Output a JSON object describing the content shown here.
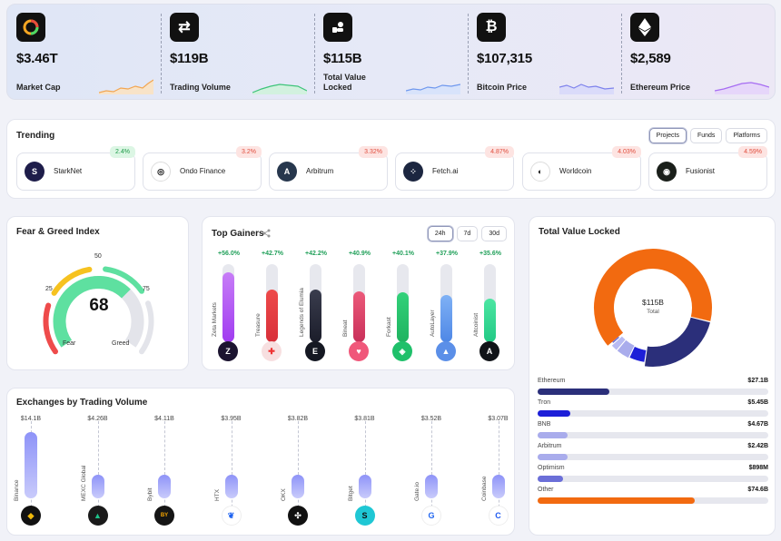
{
  "stats": [
    {
      "value": "$3.46T",
      "label": "Market Cap",
      "icon": "market-cap-icon"
    },
    {
      "value": "$119B",
      "label": "Trading Volume",
      "icon": "swap-arrows-icon"
    },
    {
      "value": "$115B",
      "label": "Total Value Locked",
      "icon": "lock-hand-icon"
    },
    {
      "value": "$107,315",
      "label": "Bitcoin Price",
      "icon": "bitcoin-icon"
    },
    {
      "value": "$2,589",
      "label": "Ethereum Price",
      "icon": "ethereum-icon"
    }
  ],
  "trending": {
    "title": "Trending",
    "tabs": [
      "Projects",
      "Funds",
      "Platforms"
    ],
    "active_tab": "Projects",
    "items": [
      {
        "name": "StarkNet",
        "change": "2.4%",
        "dir": "up",
        "color": "#1e1d4a",
        "glyph": "S"
      },
      {
        "name": "Ondo Finance",
        "change": "3.2%",
        "dir": "down",
        "color": "#ffffff",
        "glyph": "◎"
      },
      {
        "name": "Arbitrum",
        "change": "3.32%",
        "dir": "down",
        "color": "#27374d",
        "glyph": "A"
      },
      {
        "name": "Fetch.ai",
        "change": "4.87%",
        "dir": "down",
        "color": "#1c2640",
        "glyph": "⁘"
      },
      {
        "name": "Worldcoin",
        "change": "4.03%",
        "dir": "down",
        "color": "#ffffff",
        "glyph": "◐"
      },
      {
        "name": "Fusionist",
        "change": "4.59%",
        "dir": "down",
        "color": "#1a1f1a",
        "glyph": "◉"
      }
    ]
  },
  "fear_greed": {
    "title": "Fear & Greed Index",
    "value": "68",
    "ticks": [
      "25",
      "50",
      "75"
    ],
    "left_label": "Fear",
    "right_label": "Greed",
    "level": 0.68
  },
  "gainers": {
    "title": "Top Gainers",
    "ranges": [
      "24h",
      "7d",
      "30d"
    ],
    "active_range": "24h",
    "items": [
      {
        "pct": "+56.0%",
        "name": "Zeta Markets",
        "level": 0.9,
        "grad": [
          "#c77df7",
          "#a03cf0"
        ],
        "logo": "#1c1430",
        "glyph": "Z"
      },
      {
        "pct": "+42.7%",
        "name": "Treasure",
        "level": 0.68,
        "grad": [
          "#ee4a4a",
          "#d8303a"
        ],
        "logo": "#f7dfe0",
        "glyph": "✚"
      },
      {
        "pct": "+42.2%",
        "name": "Legends of Elumia",
        "level": 0.67,
        "grad": [
          "#3a3d4e",
          "#1b1d2a"
        ],
        "logo": "#151822",
        "glyph": "E"
      },
      {
        "pct": "+40.9%",
        "name": "Bineat",
        "level": 0.65,
        "grad": [
          "#ec5a7a",
          "#c9305a"
        ],
        "logo": "#f0577a",
        "glyph": "♥"
      },
      {
        "pct": "+40.1%",
        "name": "Forkast",
        "level": 0.64,
        "grad": [
          "#33d17a",
          "#1fb360"
        ],
        "logo": "#1fc06a",
        "glyph": "◈"
      },
      {
        "pct": "+37.9%",
        "name": "AutoLayer",
        "level": 0.6,
        "grad": [
          "#7fb1f5",
          "#4e87e6"
        ],
        "logo": "#5b8fe8",
        "glyph": "▲"
      },
      {
        "pct": "+35.6%",
        "name": "Altcoinist",
        "level": 0.56,
        "grad": [
          "#4ce6a2",
          "#22c985"
        ],
        "logo": "#101318",
        "glyph": "A"
      }
    ]
  },
  "tvl": {
    "title": "Total Value Locked",
    "center_value": "$115B",
    "center_label": "Total",
    "rows": [
      {
        "name": "Ethereum",
        "value": "$27.1B",
        "level": 0.31,
        "color": "#2b2f7a"
      },
      {
        "name": "Tron",
        "value": "$5.45B",
        "level": 0.14,
        "color": "#1d1fd8"
      },
      {
        "name": "BNB",
        "value": "$4.67B",
        "level": 0.13,
        "color": "#a9acec"
      },
      {
        "name": "Arbitrum",
        "value": "$2.42B",
        "level": 0.13,
        "color": "#a9acec"
      },
      {
        "name": "Optimism",
        "value": "$898M",
        "level": 0.11,
        "color": "#6b6fd8"
      },
      {
        "name": "Other",
        "value": "$74.6B",
        "level": 0.68,
        "color": "#f26a10"
      }
    ],
    "donut": [
      {
        "name": "Other",
        "value": 74.6,
        "color": "#f26a10"
      },
      {
        "name": "Ethereum",
        "value": 27.1,
        "color": "#2b2f7a"
      },
      {
        "name": "Tron",
        "value": 5.45,
        "color": "#1d1fd8"
      },
      {
        "name": "BNB",
        "value": 4.67,
        "color": "#a9acec"
      },
      {
        "name": "Arbitrum",
        "value": 2.42,
        "color": "#b8bbf2"
      },
      {
        "name": "Optimism",
        "value": 0.898,
        "color": "#6b6fd8"
      }
    ]
  },
  "exchanges": {
    "title": "Exchanges by Trading Volume",
    "items": [
      {
        "value": "$14.1B",
        "name": "Binance",
        "v": 14.1,
        "logo": "#111",
        "glyph": "◆",
        "gc": "#f0b90b"
      },
      {
        "value": "$4.26B",
        "name": "MEXC Global",
        "v": 4.26,
        "logo": "#1a1a1a",
        "glyph": "▲",
        "gc": "#1ec38a"
      },
      {
        "value": "$4.11B",
        "name": "Bybit",
        "v": 4.11,
        "logo": "#151515",
        "glyph": "BY",
        "gc": "#f7a600"
      },
      {
        "value": "$3.95B",
        "name": "HTX",
        "v": 3.95,
        "logo": "#ffffff",
        "glyph": "❦",
        "gc": "#1d62f0"
      },
      {
        "value": "$3.82B",
        "name": "OKX",
        "v": 3.82,
        "logo": "#111",
        "glyph": "✣",
        "gc": "#fff"
      },
      {
        "value": "$3.81B",
        "name": "Bitget",
        "v": 3.81,
        "logo": "#1fc7d4",
        "glyph": "S",
        "gc": "#111"
      },
      {
        "value": "$3.52B",
        "name": "Gate.io",
        "v": 3.52,
        "logo": "#ffffff",
        "glyph": "G",
        "gc": "#1e64f0"
      },
      {
        "value": "$3.07B",
        "name": "Coinbase",
        "v": 3.07,
        "logo": "#ffffff",
        "glyph": "C",
        "gc": "#1f5af0"
      }
    ]
  }
}
